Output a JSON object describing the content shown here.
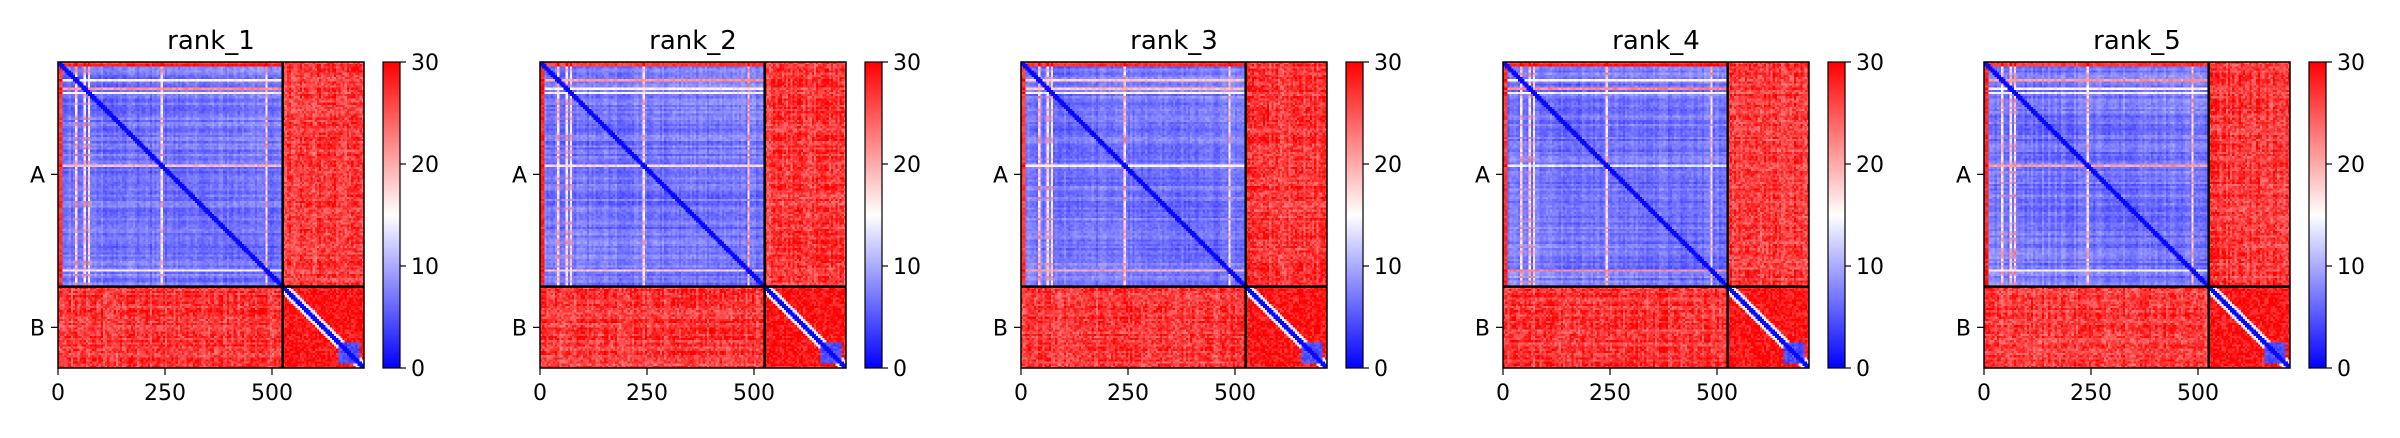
{
  "chart_data": {
    "type": "heatmap",
    "colormap": {
      "name": "bwr",
      "colors": [
        "#0000ff",
        "#ffffff",
        "#ff0000"
      ],
      "vmin": 0,
      "vmax": 30,
      "ticks": [
        0,
        10,
        20,
        30
      ]
    },
    "chains": [
      {
        "name": "A",
        "start": 0,
        "end": 525
      },
      {
        "name": "B",
        "start": 525,
        "end": 715
      }
    ],
    "xlim": [
      0,
      715
    ],
    "ylim": [
      715,
      0
    ],
    "xticks": [
      0,
      250,
      500
    ],
    "grid": false,
    "panels": [
      {
        "title": "rank_1",
        "xticks": [
          0,
          250,
          500
        ]
      },
      {
        "title": "rank_2",
        "xticks": [
          0,
          250,
          500
        ]
      },
      {
        "title": "rank_3",
        "xticks": [
          0,
          250,
          500
        ]
      },
      {
        "title": "rank_4",
        "xticks": [
          0,
          250,
          500
        ]
      },
      {
        "title": "rank_5",
        "xticks": [
          0,
          250,
          500
        ]
      }
    ]
  }
}
